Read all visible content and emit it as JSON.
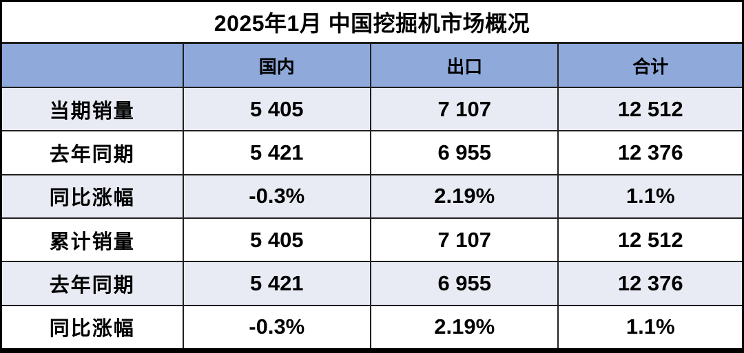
{
  "title": "2025年1月 中国挖掘机市场概况",
  "table": {
    "columns": [
      "",
      "国内",
      "出口",
      "合计"
    ],
    "rows": [
      {
        "label": "当期销量",
        "values": [
          "5 405",
          "7 107",
          "12 512"
        ]
      },
      {
        "label": "去年同期",
        "values": [
          "5 421",
          "6 955",
          "12 376"
        ]
      },
      {
        "label": "同比涨幅",
        "values": [
          "-0.3%",
          "2.19%",
          "1.1%"
        ]
      },
      {
        "label": "累计销量",
        "values": [
          "5 405",
          "7 107",
          "12 512"
        ]
      },
      {
        "label": "去年同期",
        "values": [
          "5 421",
          "6 955",
          "12 376"
        ]
      },
      {
        "label": "同比涨幅",
        "values": [
          "-0.3%",
          "2.19%",
          "1.1%"
        ]
      }
    ]
  },
  "chart_data": {
    "type": "table",
    "title": "2025年1月 中国挖掘机市场概况",
    "columns": [
      "",
      "国内",
      "出口",
      "合计"
    ],
    "rows": [
      [
        "当期销量",
        "5 405",
        "7 107",
        "12 512"
      ],
      [
        "去年同期",
        "5 421",
        "6 955",
        "12 376"
      ],
      [
        "同比涨幅",
        "-0.3%",
        "2.19%",
        "1.1%"
      ],
      [
        "累计销量",
        "5 405",
        "7 107",
        "12 512"
      ],
      [
        "去年同期",
        "5 421",
        "6 955",
        "12 376"
      ],
      [
        "同比涨幅",
        "-0.3%",
        "2.19%",
        "1.1%"
      ]
    ],
    "notes": {
      "current_sales": {
        "domestic": 5405,
        "export": 7107,
        "total": 12512
      },
      "last_year_same_period": {
        "domestic": 5421,
        "export": 6955,
        "total": 12376
      },
      "yoy_change_pct": {
        "domestic": -0.3,
        "export": 2.19,
        "total": 1.1
      }
    }
  },
  "colors": {
    "header_bg": "#8FA9DB",
    "row_alt_bg": "#E9EBF4",
    "row_bg": "#FFFFFF",
    "border": "#1F1F1F",
    "outer_border": "#000000",
    "text": "#000000"
  }
}
